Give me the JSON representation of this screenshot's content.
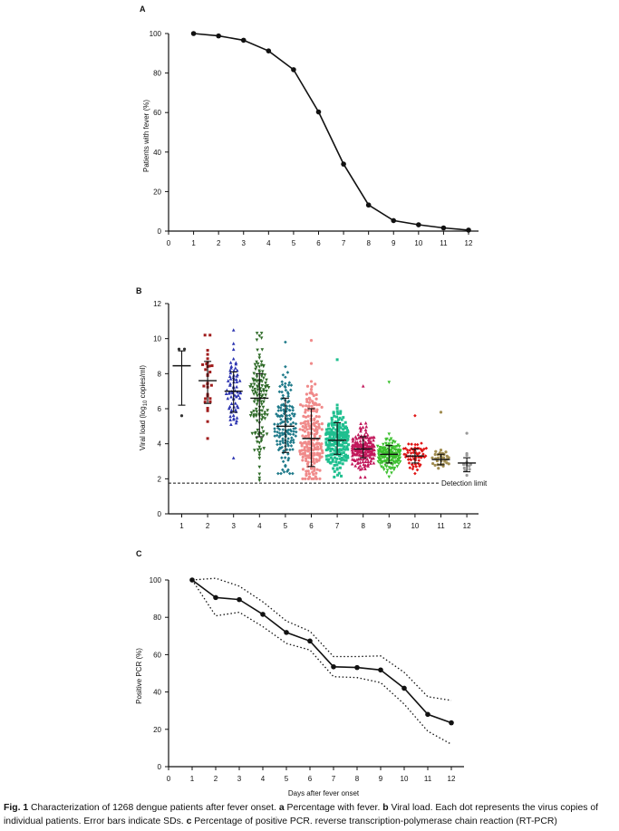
{
  "caption": {
    "fig_label": "Fig. 1",
    "text_1": "Characterization of 1268 dengue patients after fever onset.",
    "a_letter": "a",
    "a_text": "Percentage with fever.",
    "b_letter": "b",
    "b_text": "Viral load. Each dot represents the virus copies of individual patients. Error bars indicate SDs.",
    "c_letter": "c",
    "c_text": "Percentage of positive PCR. reverse transcription-polymerase chain reaction (RT-PCR)"
  },
  "chart_data": [
    {
      "panel": "A",
      "type": "line",
      "ylabel": "Patients with fever (%)",
      "xlabel": "",
      "xlim": [
        0,
        12
      ],
      "ylim": [
        0,
        100
      ],
      "xticks": [
        0,
        1,
        2,
        3,
        4,
        5,
        6,
        7,
        8,
        9,
        10,
        11,
        12
      ],
      "yticks": [
        0,
        20,
        40,
        60,
        80,
        100
      ],
      "x": [
        1,
        2,
        3,
        4,
        5,
        6,
        7,
        8,
        9,
        10,
        11,
        12
      ],
      "values": [
        100,
        98.8,
        96.6,
        91.2,
        81.7,
        60.3,
        33.9,
        13.2,
        5.3,
        3.2,
        1.6,
        0.5
      ]
    },
    {
      "panel": "B",
      "type": "scatter",
      "ylabel_prefix": "Viral load (log",
      "ylabel_sub": "10",
      "ylabel_suffix": " copies/ml)",
      "ylim": [
        0,
        12
      ],
      "yticks": [
        0,
        2,
        4,
        6,
        8,
        10,
        12
      ],
      "categories": [
        "1",
        "2",
        "3",
        "4",
        "5",
        "6",
        "7",
        "8",
        "9",
        "10",
        "11",
        "12"
      ],
      "detection_limit": 1.75,
      "detection_label": "Detection limit",
      "groups": [
        {
          "day": 1,
          "color": "#333333",
          "marker": "circle",
          "mean": 8.45,
          "sd_low": 6.2,
          "sd_high": 9.3,
          "min": 5.6,
          "max": 9.4,
          "n": 3
        },
        {
          "day": 2,
          "color": "#a01c1c",
          "marker": "square",
          "mean": 7.6,
          "sd_low": 6.3,
          "sd_high": 8.7,
          "min": 4.3,
          "max": 10.2,
          "n": 30
        },
        {
          "day": 3,
          "color": "#2b33b0",
          "marker": "triangle",
          "mean": 7.0,
          "sd_low": 5.8,
          "sd_high": 8.1,
          "min": 3.2,
          "max": 10.5,
          "n": 70
        },
        {
          "day": 4,
          "color": "#2f6b28",
          "marker": "triangle-down",
          "mean": 6.6,
          "sd_low": 4.4,
          "sd_high": 8.0,
          "min": 1.9,
          "max": 10.3,
          "n": 130
        },
        {
          "day": 5,
          "color": "#1f7a8a",
          "marker": "diamond",
          "mean": 5.0,
          "sd_low": 3.5,
          "sd_high": 6.6,
          "min": 2.3,
          "max": 9.8,
          "n": 150
        },
        {
          "day": 6,
          "color": "#f08a8a",
          "marker": "circle",
          "mean": 4.3,
          "sd_low": 2.7,
          "sd_high": 6.0,
          "min": 2.0,
          "max": 9.9,
          "n": 200
        },
        {
          "day": 7,
          "color": "#1fbf8f",
          "marker": "square",
          "mean": 4.2,
          "sd_low": 3.4,
          "sd_high": 5.2,
          "min": 2.1,
          "max": 8.8,
          "n": 200
        },
        {
          "day": 8,
          "color": "#c2185b",
          "marker": "triangle",
          "mean": 3.7,
          "sd_low": 3.2,
          "sd_high": 4.4,
          "min": 2.1,
          "max": 7.3,
          "n": 180
        },
        {
          "day": 9,
          "color": "#3cc02f",
          "marker": "triangle-down",
          "mean": 3.4,
          "sd_low": 2.9,
          "sd_high": 3.9,
          "min": 2.1,
          "max": 7.5,
          "n": 140
        },
        {
          "day": 10,
          "color": "#e01515",
          "marker": "diamond",
          "mean": 3.3,
          "sd_low": 2.9,
          "sd_high": 3.7,
          "min": 2.3,
          "max": 5.6,
          "n": 60
        },
        {
          "day": 11,
          "color": "#a08c50",
          "marker": "circle",
          "mean": 3.1,
          "sd_low": 2.8,
          "sd_high": 3.4,
          "min": 2.6,
          "max": 5.8,
          "n": 30
        },
        {
          "day": 12,
          "color": "#999999",
          "marker": "circle",
          "mean": 2.9,
          "sd_low": 2.4,
          "sd_high": 3.2,
          "min": 2.2,
          "max": 4.6,
          "n": 12
        }
      ]
    },
    {
      "panel": "C",
      "type": "line",
      "ylabel": "Positive PCR (%)",
      "xlabel": "Days after fever onset",
      "xlim": [
        0,
        12
      ],
      "ylim": [
        0,
        100
      ],
      "xticks": [
        0,
        1,
        2,
        3,
        4,
        5,
        6,
        7,
        8,
        9,
        10,
        11,
        12
      ],
      "yticks": [
        0,
        20,
        40,
        60,
        80,
        100
      ],
      "x": [
        1,
        2,
        3,
        4,
        5,
        6,
        7,
        8,
        9,
        10,
        11,
        12
      ],
      "values": [
        100,
        90.6,
        89.5,
        81.6,
        71.9,
        67.3,
        53.5,
        53.1,
        51.8,
        42.0,
        28.0,
        23.5
      ],
      "upper": [
        100,
        100.9,
        96.7,
        88.3,
        78.0,
        72.5,
        59.0,
        59.0,
        59.3,
        50.5,
        37.5,
        35.5
      ],
      "lower": [
        100,
        80.8,
        82.7,
        75.0,
        66.0,
        62.5,
        48.2,
        47.7,
        45.0,
        33.5,
        19.0,
        12.0
      ]
    }
  ]
}
